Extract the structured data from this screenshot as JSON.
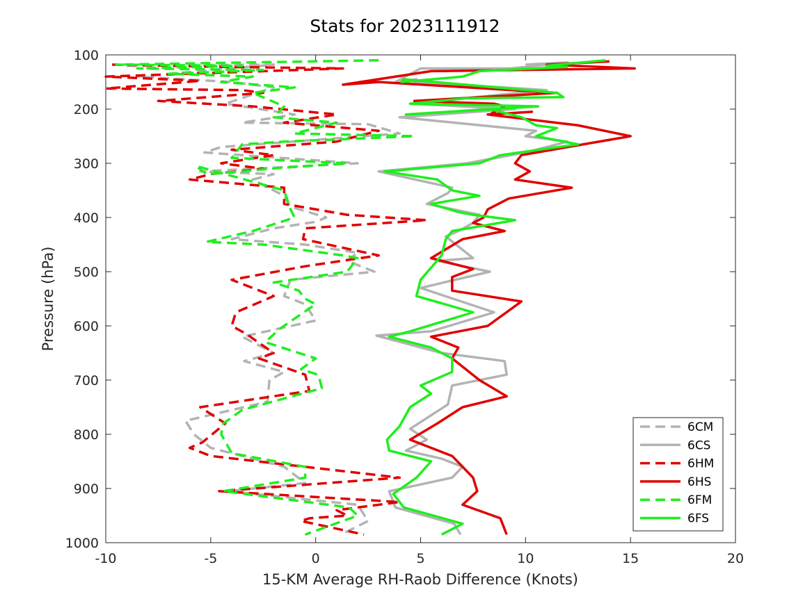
{
  "chart_data": {
    "type": "line",
    "title": "Stats for 2023111912",
    "xlabel": "15-KM Average RH-Raob Difference (Knots)",
    "ylabel": "Pressure (hPa)",
    "xlim": [
      -10,
      20
    ],
    "ylim": [
      100,
      1000
    ],
    "y_reversed": true,
    "x_ticks": [
      -10,
      -5,
      0,
      5,
      10,
      15,
      20
    ],
    "y_ticks": [
      100,
      200,
      300,
      400,
      500,
      600,
      700,
      800,
      900,
      1000
    ],
    "grid": false,
    "legend_position": "bottom-right",
    "series": [
      {
        "name": "6CM",
        "color": "#b3b3b3",
        "dash": true,
        "points": [
          [
            -9,
            120
          ],
          [
            -2,
            118
          ],
          [
            -8.5,
            140
          ],
          [
            -4,
            150
          ],
          [
            -2,
            160
          ],
          [
            -4.3,
            190
          ],
          [
            -1,
            210
          ],
          [
            -3.5,
            225
          ],
          [
            2.5,
            228
          ],
          [
            4,
            245
          ],
          [
            -4.5,
            270
          ],
          [
            -5.3,
            280
          ],
          [
            2,
            300
          ],
          [
            -5.5,
            315
          ],
          [
            -2,
            320
          ],
          [
            -3,
            330
          ],
          [
            -1.5,
            360
          ],
          [
            -1.2,
            380
          ],
          [
            0.5,
            400
          ],
          [
            0,
            408
          ],
          [
            -2,
            420
          ],
          [
            -4,
            440
          ],
          [
            -0.5,
            450
          ],
          [
            2,
            465
          ],
          [
            1.5,
            480
          ],
          [
            2.8,
            500
          ],
          [
            -1.2,
            515
          ],
          [
            -1.5,
            545
          ],
          [
            -0.5,
            560
          ],
          [
            0,
            590
          ],
          [
            -3.5,
            620
          ],
          [
            -2,
            650
          ],
          [
            -3.4,
            665
          ],
          [
            -1.5,
            685
          ],
          [
            -2.2,
            700
          ],
          [
            -2.3,
            740
          ],
          [
            -6.2,
            775
          ],
          [
            -5.8,
            800
          ],
          [
            -5,
            825
          ],
          [
            -1.5,
            860
          ],
          [
            -0.5,
            890
          ],
          [
            -4.2,
            905
          ],
          [
            2,
            930
          ],
          [
            2.5,
            960
          ],
          [
            1.2,
            985
          ]
        ]
      },
      {
        "name": "6CS",
        "color": "#b3b3b3",
        "dash": false,
        "points": [
          [
            10,
            118
          ],
          [
            12,
            114
          ],
          [
            9.3,
            125
          ],
          [
            5,
            125
          ],
          [
            3.8,
            150
          ],
          [
            4.8,
            145
          ],
          [
            4.7,
            150
          ],
          [
            11,
            165
          ],
          [
            4.5,
            190
          ],
          [
            9.5,
            200
          ],
          [
            4,
            215
          ],
          [
            10.5,
            240
          ],
          [
            10,
            250
          ],
          [
            12,
            260
          ],
          [
            10,
            280
          ],
          [
            7.2,
            300
          ],
          [
            3,
            315
          ],
          [
            6.5,
            345
          ],
          [
            6.3,
            355
          ],
          [
            5.3,
            375
          ],
          [
            7.8,
            395
          ],
          [
            7.5,
            410
          ],
          [
            6.8,
            425
          ],
          [
            6.2,
            435
          ],
          [
            7.5,
            475
          ],
          [
            5.8,
            480
          ],
          [
            8.3,
            500
          ],
          [
            5,
            530
          ],
          [
            8.5,
            575
          ],
          [
            5.5,
            610
          ],
          [
            2.9,
            618
          ],
          [
            6,
            650
          ],
          [
            9,
            665
          ],
          [
            9.1,
            690
          ],
          [
            6.5,
            710
          ],
          [
            6.3,
            745
          ],
          [
            4.5,
            790
          ],
          [
            5.3,
            810
          ],
          [
            4.3,
            830
          ],
          [
            6,
            845
          ],
          [
            7,
            860
          ],
          [
            6.5,
            880
          ],
          [
            3.5,
            905
          ],
          [
            3.8,
            935
          ],
          [
            6.6,
            965
          ],
          [
            6.9,
            985
          ]
        ]
      },
      {
        "name": "6HM",
        "color": "#e00000",
        "dash": true,
        "points": [
          [
            -9.7,
            118
          ],
          [
            -4.5,
            122
          ],
          [
            1.3,
            125
          ],
          [
            -10,
            140
          ],
          [
            -5.5,
            148
          ],
          [
            -10,
            162
          ],
          [
            -3.5,
            165
          ],
          [
            -2.5,
            170
          ],
          [
            -7.5,
            185
          ],
          [
            -3,
            195
          ],
          [
            1,
            210
          ],
          [
            -1.5,
            225
          ],
          [
            1.5,
            235
          ],
          [
            3,
            240
          ],
          [
            1,
            260
          ],
          [
            -4,
            275
          ],
          [
            -2,
            285
          ],
          [
            -4.5,
            300
          ],
          [
            -2.5,
            310
          ],
          [
            -3.7,
            315
          ],
          [
            -5,
            320
          ],
          [
            -6,
            330
          ],
          [
            -1.5,
            345
          ],
          [
            -1.5,
            375
          ],
          [
            1.5,
            395
          ],
          [
            5.3,
            405
          ],
          [
            -0.5,
            420
          ],
          [
            -0.6,
            440
          ],
          [
            3,
            470
          ],
          [
            -0.5,
            490
          ],
          [
            -4,
            515
          ],
          [
            -2,
            545
          ],
          [
            -3.8,
            575
          ],
          [
            -4,
            600
          ],
          [
            -3.3,
            615
          ],
          [
            -2,
            650
          ],
          [
            -2.7,
            660
          ],
          [
            -0.5,
            690
          ],
          [
            -0.3,
            720
          ],
          [
            -5.5,
            750
          ],
          [
            -4.3,
            780
          ],
          [
            -5.4,
            815
          ],
          [
            -6,
            825
          ],
          [
            -5,
            840
          ],
          [
            4,
            880
          ],
          [
            -4.6,
            905
          ],
          [
            4,
            925
          ],
          [
            1,
            940
          ],
          [
            1.5,
            950
          ],
          [
            -0.3,
            955
          ],
          [
            -0.7,
            960
          ],
          [
            2.3,
            985
          ]
        ]
      },
      {
        "name": "6HS",
        "color": "#e00000",
        "dash": false,
        "points": [
          [
            14,
            112
          ],
          [
            11,
            118
          ],
          [
            15.2,
            125
          ],
          [
            5.5,
            130
          ],
          [
            1.3,
            155
          ],
          [
            3,
            150
          ],
          [
            11.5,
            170
          ],
          [
            4.7,
            185
          ],
          [
            8.5,
            190
          ],
          [
            9,
            195
          ],
          [
            8.3,
            210
          ],
          [
            10.3,
            205
          ],
          [
            8.2,
            210
          ],
          [
            12.5,
            230
          ],
          [
            15,
            250
          ],
          [
            12,
            270
          ],
          [
            9.8,
            285
          ],
          [
            9.5,
            300
          ],
          [
            10.2,
            315
          ],
          [
            9.5,
            330
          ],
          [
            12.2,
            345
          ],
          [
            9.2,
            365
          ],
          [
            8.2,
            385
          ],
          [
            8,
            400
          ],
          [
            7.5,
            410
          ],
          [
            9,
            425
          ],
          [
            7,
            440
          ],
          [
            5.5,
            475
          ],
          [
            7.5,
            495
          ],
          [
            6.5,
            510
          ],
          [
            6.5,
            535
          ],
          [
            9.8,
            555
          ],
          [
            8.2,
            600
          ],
          [
            5.5,
            620
          ],
          [
            6.8,
            640
          ],
          [
            6.5,
            660
          ],
          [
            7.8,
            700
          ],
          [
            9.1,
            730
          ],
          [
            7,
            750
          ],
          [
            5.8,
            780
          ],
          [
            4.5,
            810
          ],
          [
            6.5,
            840
          ],
          [
            7.5,
            880
          ],
          [
            7.7,
            905
          ],
          [
            7,
            930
          ],
          [
            8.8,
            955
          ],
          [
            9.1,
            985
          ]
        ]
      },
      {
        "name": "6FM",
        "color": "#1eef1e",
        "dash": true,
        "points": [
          [
            3,
            110
          ],
          [
            -9.5,
            118
          ],
          [
            -3.5,
            120
          ],
          [
            -8.5,
            125
          ],
          [
            -2.5,
            128
          ],
          [
            -7,
            135
          ],
          [
            -3,
            140
          ],
          [
            -4.5,
            150
          ],
          [
            -1,
            160
          ],
          [
            -3,
            170
          ],
          [
            -1.5,
            195
          ],
          [
            -2,
            215
          ],
          [
            1,
            225
          ],
          [
            -1,
            245
          ],
          [
            4.7,
            250
          ],
          [
            -1.5,
            260
          ],
          [
            -3.5,
            265
          ],
          [
            -4,
            290
          ],
          [
            1.5,
            300
          ],
          [
            -2.2,
            310
          ],
          [
            -3.5,
            315
          ],
          [
            -5.2,
            320
          ],
          [
            -5.7,
            305
          ],
          [
            -1.5,
            350
          ],
          [
            -1.2,
            385
          ],
          [
            -1,
            400
          ],
          [
            -3,
            425
          ],
          [
            -5.2,
            445
          ],
          [
            -2.5,
            450
          ],
          [
            1.3,
            470
          ],
          [
            2,
            475
          ],
          [
            1.5,
            500
          ],
          [
            -2,
            520
          ],
          [
            -0.8,
            535
          ],
          [
            -0.5,
            550
          ],
          [
            0,
            560
          ],
          [
            -1.7,
            605
          ],
          [
            -2.4,
            630
          ],
          [
            0,
            660
          ],
          [
            -0.7,
            680
          ],
          [
            0.1,
            690
          ],
          [
            0.2,
            700
          ],
          [
            0.3,
            715
          ],
          [
            -3.5,
            755
          ],
          [
            -4.4,
            780
          ],
          [
            -4.5,
            800
          ],
          [
            -4,
            835
          ],
          [
            -0.5,
            860
          ],
          [
            -0.5,
            880
          ],
          [
            -4.4,
            905
          ],
          [
            1.6,
            935
          ],
          [
            2,
            950
          ],
          [
            -0.5,
            985
          ]
        ]
      },
      {
        "name": "6FS",
        "color": "#1eef1e",
        "dash": false,
        "points": [
          [
            13.8,
            110
          ],
          [
            11,
            120
          ],
          [
            12,
            122
          ],
          [
            7.8,
            130
          ],
          [
            7,
            140
          ],
          [
            4.1,
            150
          ],
          [
            4.2,
            145
          ],
          [
            11.5,
            170
          ],
          [
            11.8,
            178
          ],
          [
            7.2,
            180
          ],
          [
            4.5,
            190
          ],
          [
            10.6,
            195
          ],
          [
            4.3,
            210
          ],
          [
            8.3,
            200
          ],
          [
            9.8,
            215
          ],
          [
            10.5,
            230
          ],
          [
            11.5,
            235
          ],
          [
            10.5,
            250
          ],
          [
            12.5,
            265
          ],
          [
            8.8,
            285
          ],
          [
            7.8,
            300
          ],
          [
            3.3,
            315
          ],
          [
            5.8,
            330
          ],
          [
            6.5,
            350
          ],
          [
            7.8,
            360
          ],
          [
            5.5,
            375
          ],
          [
            6.8,
            390
          ],
          [
            7.5,
            395
          ],
          [
            9.5,
            405
          ],
          [
            6.5,
            425
          ],
          [
            6.2,
            440
          ],
          [
            6,
            470
          ],
          [
            5,
            515
          ],
          [
            4.8,
            545
          ],
          [
            7.5,
            575
          ],
          [
            4.5,
            610
          ],
          [
            3.5,
            620
          ],
          [
            5.5,
            640
          ],
          [
            6.5,
            660
          ],
          [
            6.5,
            685
          ],
          [
            5,
            710
          ],
          [
            5.5,
            725
          ],
          [
            4.5,
            750
          ],
          [
            4,
            785
          ],
          [
            3.4,
            810
          ],
          [
            3.5,
            830
          ],
          [
            5.5,
            850
          ],
          [
            4.8,
            880
          ],
          [
            3.7,
            910
          ],
          [
            4.2,
            935
          ],
          [
            7,
            965
          ],
          [
            6,
            985
          ]
        ]
      }
    ]
  }
}
